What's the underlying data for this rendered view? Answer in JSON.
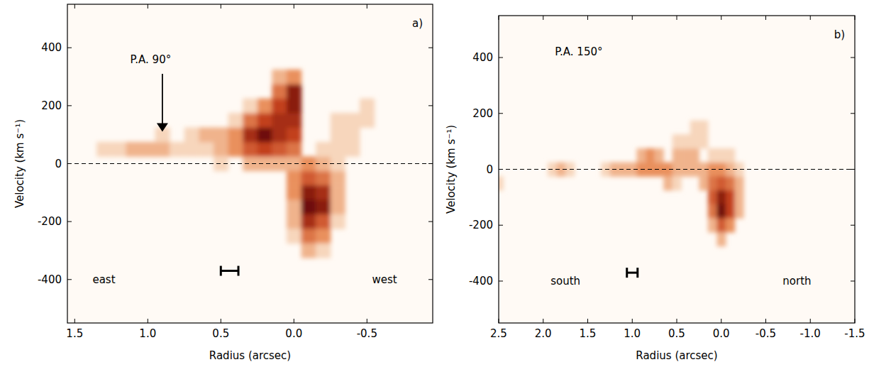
{
  "chart_data": [
    {
      "type": "heatmap",
      "panel_label": "a)",
      "xlabel": "Radius (arcsec)",
      "ylabel": "Velocity (km s⁻¹)",
      "xlim": [
        1.55,
        -0.95
      ],
      "ylim": [
        -550,
        550
      ],
      "xticks": [
        1.5,
        {
          "value": 1,
          "label": "1.0"
        },
        0.5,
        {
          "value": 0,
          "label": "0.0"
        },
        -0.5
      ],
      "yticks": [
        -400,
        -200,
        0,
        200,
        400
      ],
      "hline": 0,
      "cell_size": [
        0.1,
        50
      ],
      "cells": [
        [
          1.3,
          50,
          1
        ],
        [
          1.2,
          50,
          1
        ],
        [
          1.1,
          50,
          2
        ],
        [
          1.0,
          50,
          2
        ],
        [
          0.9,
          50,
          2
        ],
        [
          0.9,
          100,
          1
        ],
        [
          0.8,
          50,
          1
        ],
        [
          0.7,
          50,
          1
        ],
        [
          0.7,
          100,
          1
        ],
        [
          0.6,
          50,
          1
        ],
        [
          0.6,
          100,
          2
        ],
        [
          0.5,
          50,
          2
        ],
        [
          0.5,
          100,
          2
        ],
        [
          0.5,
          0,
          1
        ],
        [
          0.4,
          50,
          3
        ],
        [
          0.4,
          100,
          3
        ],
        [
          0.4,
          150,
          1
        ],
        [
          0.3,
          0,
          2
        ],
        [
          0.3,
          50,
          5
        ],
        [
          0.3,
          100,
          7
        ],
        [
          0.3,
          150,
          4
        ],
        [
          0.3,
          200,
          1
        ],
        [
          0.2,
          0,
          2
        ],
        [
          0.2,
          50,
          6
        ],
        [
          0.2,
          100,
          9
        ],
        [
          0.2,
          150,
          6
        ],
        [
          0.2,
          200,
          3
        ],
        [
          0.1,
          0,
          2
        ],
        [
          0.1,
          50,
          5
        ],
        [
          0.1,
          100,
          7
        ],
        [
          0.1,
          150,
          7
        ],
        [
          0.1,
          200,
          6
        ],
        [
          0.1,
          250,
          4
        ],
        [
          0.1,
          300,
          2
        ],
        [
          0.0,
          0,
          2
        ],
        [
          0.0,
          50,
          4
        ],
        [
          0.0,
          100,
          6
        ],
        [
          0.0,
          150,
          7
        ],
        [
          0.0,
          200,
          8
        ],
        [
          0.0,
          250,
          8
        ],
        [
          0.0,
          300,
          3
        ],
        [
          0.0,
          -50,
          3
        ],
        [
          0.0,
          -100,
          3
        ],
        [
          0.0,
          -150,
          2
        ],
        [
          0.0,
          -200,
          2
        ],
        [
          0.0,
          -250,
          1
        ],
        [
          -0.1,
          -50,
          5
        ],
        [
          -0.1,
          -100,
          8
        ],
        [
          -0.1,
          -150,
          9
        ],
        [
          -0.1,
          -200,
          7
        ],
        [
          -0.1,
          -250,
          4
        ],
        [
          -0.1,
          -300,
          2
        ],
        [
          -0.2,
          -50,
          4
        ],
        [
          -0.2,
          -100,
          7
        ],
        [
          -0.2,
          -150,
          8
        ],
        [
          -0.2,
          -200,
          5
        ],
        [
          -0.2,
          -250,
          3
        ],
        [
          -0.2,
          -300,
          1
        ],
        [
          -0.3,
          -50,
          2
        ],
        [
          -0.3,
          -100,
          2
        ],
        [
          -0.3,
          -150,
          2
        ],
        [
          -0.3,
          -200,
          1
        ],
        [
          -0.1,
          0,
          3
        ],
        [
          -0.2,
          0,
          2
        ],
        [
          -0.3,
          0,
          1
        ],
        [
          -0.3,
          50,
          1
        ],
        [
          -0.4,
          50,
          1
        ],
        [
          -0.4,
          100,
          1
        ],
        [
          -0.3,
          100,
          1
        ],
        [
          -0.4,
          150,
          1
        ],
        [
          -0.3,
          150,
          1
        ],
        [
          -0.5,
          150,
          1
        ],
        [
          -0.5,
          200,
          1
        ],
        [
          -0.2,
          50,
          1
        ]
      ],
      "annotations": [
        {
          "text": "P.A. 90°",
          "x": 0.98,
          "y": 360
        },
        {
          "text": "east",
          "x": 1.3,
          "y": -400
        },
        {
          "text": "west",
          "x": -0.62,
          "y": -400
        }
      ],
      "arrow": {
        "x": 0.9,
        "y0": 310,
        "y1": 110
      },
      "scale_bar": {
        "x0": 0.5,
        "x1": 0.38,
        "y": -370
      }
    },
    {
      "type": "heatmap",
      "panel_label": "b)",
      "xlabel": "Radius (arcsec)",
      "ylabel": "Velocity (km s⁻¹)",
      "xlim": [
        2.5,
        -1.5
      ],
      "ylim": [
        -550,
        550
      ],
      "xticks": [
        2.5,
        {
          "value": 2,
          "label": "2.0"
        },
        1.5,
        {
          "value": 1,
          "label": "1.0"
        },
        0.5,
        {
          "value": 0,
          "label": "0.0"
        },
        -0.5,
        {
          "value": -1,
          "label": "-1.0"
        },
        -1.5
      ],
      "yticks": [
        -400,
        -200,
        0,
        200,
        400
      ],
      "hline": 0,
      "cell_size": [
        0.1,
        50
      ],
      "cells": [
        [
          1.9,
          0,
          1
        ],
        [
          1.8,
          0,
          2
        ],
        [
          1.7,
          0,
          1
        ],
        [
          2.5,
          -50,
          1
        ],
        [
          1.3,
          0,
          1
        ],
        [
          1.2,
          0,
          2
        ],
        [
          1.1,
          0,
          2
        ],
        [
          1.0,
          0,
          2
        ],
        [
          0.9,
          0,
          3
        ],
        [
          0.9,
          50,
          2
        ],
        [
          0.8,
          0,
          3
        ],
        [
          0.8,
          50,
          3
        ],
        [
          0.7,
          0,
          3
        ],
        [
          0.7,
          50,
          2
        ],
        [
          0.6,
          0,
          3
        ],
        [
          0.6,
          -50,
          2
        ],
        [
          0.5,
          0,
          2
        ],
        [
          0.5,
          50,
          2
        ],
        [
          0.4,
          0,
          2
        ],
        [
          0.4,
          50,
          2
        ],
        [
          0.3,
          0,
          2
        ],
        [
          0.3,
          50,
          2
        ],
        [
          0.3,
          100,
          1
        ],
        [
          0.4,
          100,
          1
        ],
        [
          0.5,
          100,
          1
        ],
        [
          0.2,
          100,
          1
        ],
        [
          0.2,
          150,
          1
        ],
        [
          0.3,
          150,
          1
        ],
        [
          0.5,
          -50,
          1
        ],
        [
          0.2,
          -50,
          2
        ],
        [
          0.2,
          0,
          2
        ],
        [
          0.1,
          0,
          3
        ],
        [
          0.1,
          -50,
          4
        ],
        [
          0.1,
          -100,
          5
        ],
        [
          0.1,
          -150,
          4
        ],
        [
          0.1,
          -200,
          2
        ],
        [
          0.0,
          0,
          3
        ],
        [
          0.0,
          -50,
          5
        ],
        [
          0.0,
          -100,
          8
        ],
        [
          0.0,
          -150,
          9
        ],
        [
          0.0,
          -200,
          5
        ],
        [
          0.0,
          -250,
          2
        ],
        [
          -0.1,
          0,
          2
        ],
        [
          -0.1,
          -50,
          4
        ],
        [
          -0.1,
          -100,
          6
        ],
        [
          -0.1,
          -150,
          6
        ],
        [
          -0.1,
          -200,
          3
        ],
        [
          -0.2,
          -50,
          2
        ],
        [
          -0.2,
          -100,
          2
        ],
        [
          -0.2,
          -150,
          2
        ],
        [
          -0.2,
          0,
          1
        ],
        [
          0.1,
          50,
          1
        ],
        [
          0.0,
          50,
          1
        ],
        [
          -0.1,
          50,
          1
        ]
      ],
      "annotations": [
        {
          "text": "P.A. 150°",
          "x": 1.6,
          "y": 420
        },
        {
          "text": "south",
          "x": 1.75,
          "y": -400
        },
        {
          "text": "north",
          "x": -0.85,
          "y": -400
        }
      ],
      "scale_bar": {
        "x0": 1.06,
        "x1": 0.94,
        "y": -370
      }
    }
  ]
}
